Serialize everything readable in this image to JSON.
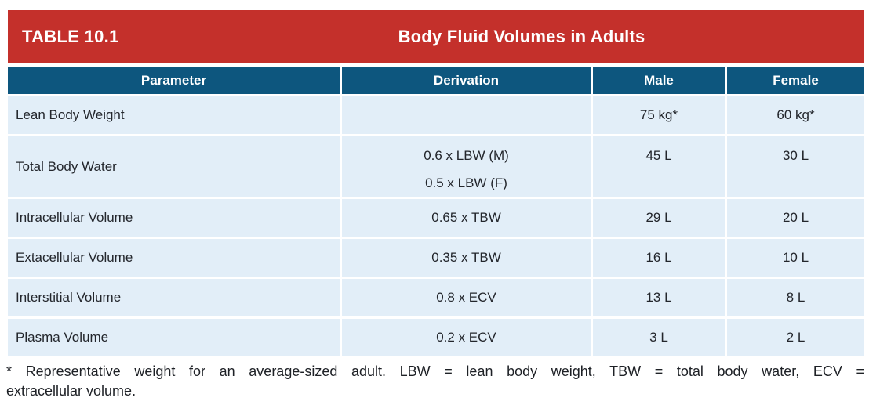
{
  "table": {
    "number": "TABLE 10.1",
    "title": "Body Fluid Volumes in Adults",
    "columns": [
      "Parameter",
      "Derivation",
      "Male",
      "Female"
    ],
    "rows": [
      {
        "parameter": "Lean Body Weight",
        "derivation": [
          ""
        ],
        "male": "75 kg*",
        "female": "60 kg*"
      },
      {
        "parameter": "Total Body Water",
        "derivation": [
          "0.6 x LBW (M)",
          "0.5 x LBW (F)"
        ],
        "male": "45 L",
        "female": "30 L"
      },
      {
        "parameter": "Intracellular Volume",
        "derivation": [
          "0.65 x TBW"
        ],
        "male": "29 L",
        "female": "20 L"
      },
      {
        "parameter": "Extacellular Volume",
        "derivation": [
          "0.35 x TBW"
        ],
        "male": "16 L",
        "female": "10 L"
      },
      {
        "parameter": "Interstitial Volume",
        "derivation": [
          "0.8 x ECV"
        ],
        "male": "13 L",
        "female": "8 L"
      },
      {
        "parameter": "Plasma Volume",
        "derivation": [
          "0.2 x ECV"
        ],
        "male": "3 L",
        "female": "2 L"
      }
    ],
    "footnote": {
      "line1": "* Representative weight for an average-sized adult. LBW = lean body weight, TBW = total body water, ECV =",
      "line2": "extracellular volume."
    }
  },
  "colors": {
    "band_red": "#c4302b",
    "header_teal": "#0d567e",
    "row_blue": "#e2eef8"
  }
}
